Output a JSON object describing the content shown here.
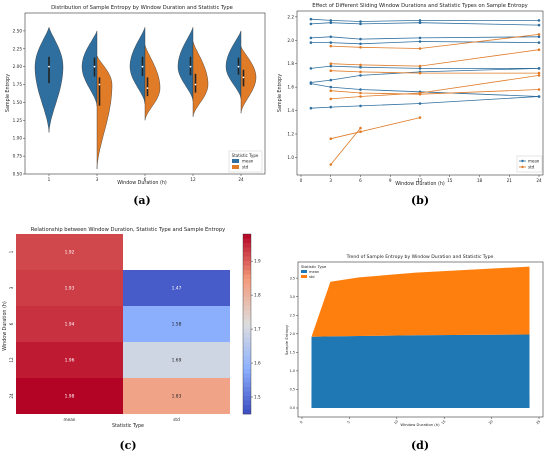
{
  "panels": {
    "a": {
      "caption": "(a)",
      "chart_data": {
        "type": "violin",
        "title": "Distribution of Sample Entropy by Window Duration and Statistic Type",
        "xlabel": "Window Duration (h)",
        "ylabel": "Sample Entropy",
        "categories": [
          "1",
          "3",
          "6",
          "12",
          "24"
        ],
        "ylim": [
          0.5,
          2.75
        ],
        "yticks": [
          "0.50",
          "0.75",
          "1.00",
          "1.25",
          "1.50",
          "1.75",
          "2.00",
          "2.25",
          "2.50"
        ],
        "legend": {
          "title": "Statistic Type",
          "position": "lower-right"
        },
        "series": [
          {
            "name": "mean",
            "color": "#2f6f9f",
            "min": [
              1.08,
              1.45,
              1.48,
              1.52,
              1.55
            ],
            "max": [
              2.55,
              2.5,
              2.55,
              2.55,
              2.5
            ],
            "mode": [
              2.0,
              2.0,
              2.0,
              2.0,
              2.0
            ]
          },
          {
            "name": "std",
            "color": "#e07b27",
            "min": [
              null,
              0.57,
              1.25,
              1.3,
              1.35
            ],
            "max": [
              null,
              2.15,
              2.3,
              2.35,
              2.28
            ],
            "mode": [
              null,
              1.75,
              1.7,
              1.75,
              1.85
            ]
          }
        ]
      }
    },
    "b": {
      "caption": "(b)",
      "chart_data": {
        "type": "line",
        "title": "Effect of Different Sliding Window Durations and Statistic Types on Sample Entropy",
        "xlabel": "Window Duration (h)",
        "ylabel": "Sample Entropy",
        "xlim": [
          0,
          24
        ],
        "xticks": [
          "0",
          "3",
          "6",
          "9",
          "12",
          "15",
          "18",
          "21",
          "24"
        ],
        "ylim": [
          0.85,
          2.25
        ],
        "yticks": [
          "1.0",
          "1.2",
          "1.4",
          "1.6",
          "1.8",
          "2.0",
          "2.2"
        ],
        "legend": {
          "position": "lower-right",
          "entries": [
            "mean",
            "std"
          ]
        },
        "series": [
          {
            "name": "mean",
            "color": "#2f6f9f",
            "x": [
              1,
              3,
              6,
              12,
              24
            ],
            "y": [
              2.18,
              2.17,
              2.16,
              2.17,
              2.17
            ]
          },
          {
            "name": "mean",
            "color": "#2f6f9f",
            "x": [
              1,
              3,
              6,
              12,
              24
            ],
            "y": [
              2.14,
              2.15,
              2.14,
              2.15,
              2.13
            ]
          },
          {
            "name": "mean",
            "color": "#2f6f9f",
            "x": [
              1,
              3,
              6,
              12,
              24
            ],
            "y": [
              2.02,
              2.03,
              2.01,
              2.02,
              2.03
            ]
          },
          {
            "name": "mean",
            "color": "#2f6f9f",
            "x": [
              1,
              3,
              6,
              12,
              24
            ],
            "y": [
              1.98,
              1.98,
              1.97,
              1.99,
              1.98
            ]
          },
          {
            "name": "mean",
            "color": "#2f6f9f",
            "x": [
              1,
              3,
              6,
              12,
              24
            ],
            "y": [
              1.76,
              1.78,
              1.77,
              1.76,
              1.76
            ]
          },
          {
            "name": "mean",
            "color": "#2f6f9f",
            "x": [
              1,
              3,
              6,
              12,
              24
            ],
            "y": [
              1.64,
              1.66,
              1.7,
              1.73,
              1.76
            ]
          },
          {
            "name": "mean",
            "color": "#2f6f9f",
            "x": [
              1,
              3,
              6,
              12,
              24
            ],
            "y": [
              1.42,
              1.43,
              1.44,
              1.46,
              1.52
            ]
          },
          {
            "name": "mean",
            "color": "#2f6f9f",
            "x": [
              1,
              3,
              6,
              12,
              24
            ],
            "y": [
              1.63,
              1.6,
              1.58,
              1.56,
              1.52
            ]
          },
          {
            "name": "std",
            "color": "#e07b27",
            "x": [
              3,
              6,
              12,
              24
            ],
            "y": [
              1.95,
              1.94,
              1.93,
              2.05
            ]
          },
          {
            "name": "std",
            "color": "#e07b27",
            "x": [
              3,
              6,
              12,
              24
            ],
            "y": [
              1.8,
              1.79,
              1.78,
              1.92
            ]
          },
          {
            "name": "std",
            "color": "#e07b27",
            "x": [
              3,
              6,
              12,
              24
            ],
            "y": [
              1.74,
              1.73,
              1.72,
              1.72
            ]
          },
          {
            "name": "std",
            "color": "#e07b27",
            "x": [
              3,
              6,
              12,
              24
            ],
            "y": [
              1.57,
              1.55,
              1.54,
              1.58
            ]
          },
          {
            "name": "std",
            "color": "#e07b27",
            "x": [
              3,
              6,
              12,
              24
            ],
            "y": [
              1.5,
              1.52,
              1.55,
              1.7
            ]
          },
          {
            "name": "std",
            "color": "#e07b27",
            "x": [
              3,
              6,
              12
            ],
            "y": [
              1.16,
              1.22,
              1.34
            ]
          },
          {
            "name": "std",
            "color": "#e07b27",
            "x": [
              3,
              6
            ],
            "y": [
              0.94,
              1.25
            ]
          }
        ]
      }
    },
    "c": {
      "caption": "(c)",
      "chart_data": {
        "type": "heatmap",
        "title": "Relationship between Window Duration, Statistic Type and Sample Entropy",
        "xlabel": "Statistic Type",
        "ylabel": "Window Duration (h)",
        "columns": [
          "mean",
          "std"
        ],
        "rows": [
          "1",
          "3",
          "6",
          "12",
          "24"
        ],
        "values": [
          [
            1.92,
            null
          ],
          [
            1.93,
            1.47
          ],
          [
            1.94,
            1.58
          ],
          [
            1.96,
            1.69
          ],
          [
            1.98,
            1.83
          ]
        ],
        "labels": [
          [
            "1.92",
            ""
          ],
          [
            "1.93",
            "1.47"
          ],
          [
            "1.94",
            "1.58"
          ],
          [
            "1.96",
            "1.69"
          ],
          [
            "1.98",
            "1.83"
          ]
        ],
        "colorbar": {
          "range": [
            1.45,
            1.98
          ],
          "ticks": [
            "1.5",
            "1.6",
            "1.7",
            "1.8",
            "1.9"
          ]
        }
      }
    },
    "d": {
      "caption": "(d)",
      "chart_data": {
        "type": "area",
        "title": "Trend of Sample Entropy by Window Duration and Statistic Type",
        "xlabel": "Window Duration (h)",
        "ylabel": "Sample Entropy",
        "x": [
          1,
          3,
          6,
          12,
          24
        ],
        "xlim": [
          0,
          25
        ],
        "xticks": [
          "0",
          "5",
          "10",
          "15",
          "20",
          "25"
        ],
        "ylim": [
          0,
          3.8
        ],
        "yticks": [
          "0.0",
          "0.5",
          "1.0",
          "1.5",
          "2.0",
          "2.5",
          "3.0",
          "3.5"
        ],
        "legend": {
          "title": "Statistic Type",
          "position": "top-left"
        },
        "series": [
          {
            "name": "mean",
            "color": "#1f77b4",
            "values": [
              1.92,
              1.93,
              1.94,
              1.96,
              1.98
            ]
          },
          {
            "name": "std",
            "color": "#ff7f0e",
            "values": [
              0.0,
              1.47,
              1.58,
              1.69,
              1.83
            ]
          }
        ]
      }
    }
  }
}
